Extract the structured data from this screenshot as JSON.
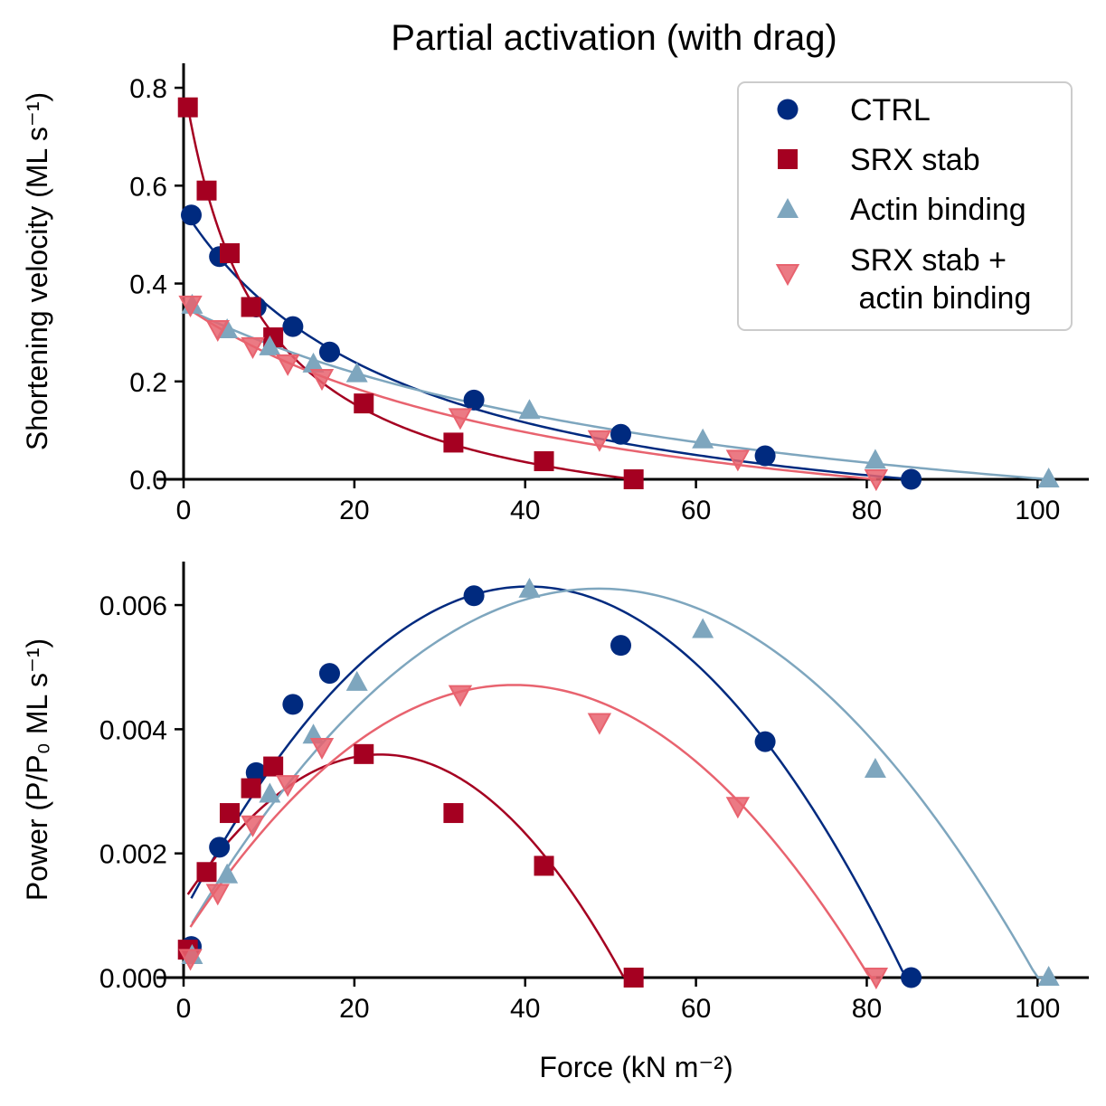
{
  "figure": {
    "title": "Partial activation (with drag)"
  },
  "legend": {
    "items": [
      {
        "label": "CTRL",
        "series": "ctrl"
      },
      {
        "label": "SRX stab",
        "series": "srx"
      },
      {
        "label": "Actin binding",
        "series": "actin"
      },
      {
        "label": "SRX stab +\n actin binding",
        "series": "both"
      }
    ]
  },
  "series_styles": {
    "ctrl": {
      "color": "#002a7f",
      "marker": "circle"
    },
    "srx": {
      "color": "#a50021",
      "marker": "square"
    },
    "actin": {
      "color": "#7ea6be",
      "marker": "triangle-up"
    },
    "both": {
      "color": "#e8636f",
      "marker": "triangle-down"
    }
  },
  "chart_data": [
    {
      "type": "scatter",
      "panel": "top",
      "title": "Partial activation (with drag)",
      "xlabel": "",
      "ylabel": "Shortening velocity (ML s⁻¹)",
      "xlim": [
        0,
        106
      ],
      "ylim": [
        0,
        0.85
      ],
      "xticks": [
        0,
        20,
        40,
        60,
        80,
        100
      ],
      "yticks": [
        0.0,
        0.2,
        0.4,
        0.6,
        0.8
      ],
      "ytick_labels": [
        "0.0",
        "0.2",
        "0.4",
        "0.6",
        "0.8"
      ],
      "grid": false,
      "legend": "top-right",
      "series": [
        {
          "key": "ctrl",
          "name": "CTRL",
          "x": [
            0.9,
            4.2,
            8.5,
            12.8,
            17.1,
            34.0,
            51.2,
            68.1,
            85.2
          ],
          "y": [
            0.54,
            0.455,
            0.352,
            0.312,
            0.26,
            0.162,
            0.092,
            0.048,
            0.0
          ]
        },
        {
          "key": "srx",
          "name": "SRX stab",
          "x": [
            0.5,
            2.7,
            5.4,
            7.9,
            10.5,
            21.1,
            31.6,
            42.2,
            52.7
          ],
          "y": [
            0.76,
            0.59,
            0.462,
            0.352,
            0.29,
            0.155,
            0.075,
            0.037,
            0.0
          ]
        },
        {
          "key": "actin",
          "name": "Actin binding",
          "x": [
            1.0,
            5.1,
            10.1,
            15.2,
            20.3,
            40.5,
            60.8,
            81.0,
            101.3
          ],
          "y": [
            0.355,
            0.305,
            0.27,
            0.235,
            0.215,
            0.14,
            0.08,
            0.038,
            0.0
          ]
        },
        {
          "key": "both",
          "name": "SRX stab +\n actin binding",
          "x": [
            0.8,
            4.0,
            8.1,
            12.2,
            16.2,
            32.4,
            48.7,
            64.9,
            81.1
          ],
          "y": [
            0.355,
            0.305,
            0.27,
            0.235,
            0.205,
            0.125,
            0.08,
            0.04,
            0.0
          ]
        }
      ]
    },
    {
      "type": "scatter",
      "panel": "bottom",
      "xlabel": "Force (kN m⁻²)",
      "ylabel": "Power (P/P₀ ML s⁻¹)",
      "xlim": [
        0,
        106
      ],
      "ylim": [
        0,
        0.0067
      ],
      "xticks": [
        0,
        20,
        40,
        60,
        80,
        100
      ],
      "yticks": [
        0.0,
        0.002,
        0.004,
        0.006
      ],
      "ytick_labels": [
        "0.000",
        "0.002",
        "0.004",
        "0.006"
      ],
      "grid": false,
      "series": [
        {
          "key": "ctrl",
          "name": "CTRL",
          "x": [
            0.9,
            4.2,
            8.5,
            12.8,
            17.1,
            34.0,
            51.2,
            68.1,
            85.2
          ],
          "y": [
            0.0005,
            0.0021,
            0.0033,
            0.0044,
            0.0049,
            0.00615,
            0.00535,
            0.0038,
            0.0
          ]
        },
        {
          "key": "srx",
          "name": "SRX stab",
          "x": [
            0.5,
            2.7,
            5.4,
            7.9,
            10.5,
            21.1,
            31.6,
            42.2,
            52.7
          ],
          "y": [
            0.00045,
            0.0017,
            0.00265,
            0.00305,
            0.0034,
            0.0036,
            0.00265,
            0.0018,
            0.0
          ]
        },
        {
          "key": "actin",
          "name": "Actin binding",
          "x": [
            1.0,
            5.1,
            10.1,
            15.2,
            20.3,
            40.5,
            60.8,
            81.0,
            101.3
          ],
          "y": [
            0.00035,
            0.00165,
            0.00295,
            0.0039,
            0.00475,
            0.00625,
            0.0056,
            0.00335,
            0.0
          ]
        },
        {
          "key": "both",
          "name": "SRX stab +\n actin binding",
          "x": [
            0.8,
            4.0,
            8.1,
            12.2,
            16.2,
            32.4,
            48.7,
            64.9,
            81.1
          ],
          "y": [
            0.0003,
            0.00135,
            0.00245,
            0.0031,
            0.0037,
            0.00455,
            0.0041,
            0.00275,
            0.0
          ]
        }
      ]
    }
  ]
}
